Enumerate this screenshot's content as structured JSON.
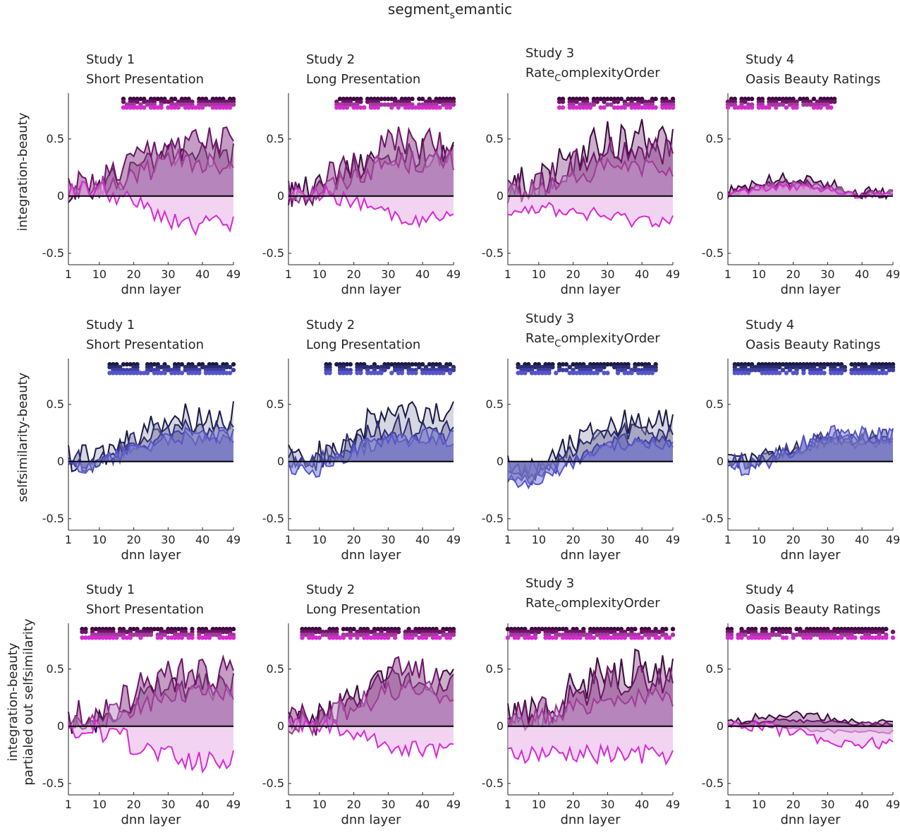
{
  "figure": {
    "title_main": "segment",
    "title_sub": "s",
    "title_rest": "emantic"
  },
  "colors": {
    "purple": [
      "#3d0a3f",
      "#6e1468",
      "#a03a98",
      "#d62ad2"
    ],
    "blue": [
      "#1a1a48",
      "#2b2b6e",
      "#3f3fa0",
      "#5556cc"
    ],
    "text": "#262626"
  },
  "x_ticks": [
    "1",
    "10",
    "20",
    "30",
    "40",
    "49"
  ],
  "y_ticks": [
    "0.5",
    "0",
    "-0.5"
  ],
  "xlabel": "dnn layer",
  "row_labels": [
    [
      "integration-beauty"
    ],
    [
      "selfsimilarity-beauty"
    ],
    [
      "integration-beauty",
      "partialed out selfsimilarity"
    ]
  ],
  "panel_titles": [
    {
      "line1": "Study 1",
      "line2": "Short Presentation",
      "sub": ""
    },
    {
      "line1": "Study 2",
      "line2": "Long Presentation",
      "sub": ""
    },
    {
      "line1": "Study 3",
      "line2": "Rate",
      "sub": "C",
      "rest": "omplexityOrder"
    },
    {
      "line1": "Study 4",
      "line2": "Oasis Beauty Ratings",
      "sub": ""
    }
  ],
  "chart_data": [
    {
      "type": "area",
      "row": 0,
      "ylabel": "integration-beauty",
      "xlim": [
        1,
        49
      ],
      "ylim": [
        -0.6,
        0.9
      ],
      "panels": [
        {
          "study": "Study 1",
          "series": [
            {
              "peak": 0.35,
              "start": 0.05,
              "shape": "rise",
              "neg": false
            },
            {
              "peak": 0.45,
              "start": 0.08,
              "shape": "rise",
              "neg": false
            },
            {
              "peak": 0.3,
              "start": 0.04,
              "shape": "rise",
              "neg": false
            },
            {
              "peak": -0.25,
              "start": 0.05,
              "shape": "fall",
              "neg": true
            }
          ],
          "sig_start": 17,
          "sig_end": 49
        },
        {
          "study": "Study 2",
          "series": [
            {
              "peak": 0.38,
              "start": 0.04,
              "shape": "rise",
              "neg": false
            },
            {
              "peak": 0.45,
              "start": 0.06,
              "shape": "rise",
              "neg": false
            },
            {
              "peak": 0.3,
              "start": 0.03,
              "shape": "rise",
              "neg": false
            },
            {
              "peak": -0.2,
              "start": 0.03,
              "shape": "fall",
              "neg": true
            }
          ],
          "sig_start": 15,
          "sig_end": 49
        },
        {
          "study": "Study 3",
          "series": [
            {
              "peak": 0.5,
              "start": 0.1,
              "shape": "rise",
              "neg": false
            },
            {
              "peak": 0.4,
              "start": 0.08,
              "shape": "rise",
              "neg": false
            },
            {
              "peak": 0.25,
              "start": 0.05,
              "shape": "rise",
              "neg": false
            },
            {
              "peak": -0.2,
              "start": -0.1,
              "shape": "fall",
              "neg": true
            }
          ],
          "sig_start": 16,
          "sig_end": 49
        },
        {
          "study": "Study 4",
          "series": [
            {
              "peak": 0.15,
              "start": 0.03,
              "shape": "hump",
              "neg": false
            },
            {
              "peak": 0.12,
              "start": 0.02,
              "shape": "hump",
              "neg": false
            },
            {
              "peak": 0.1,
              "start": 0.02,
              "shape": "hump",
              "neg": false
            },
            {
              "peak": 0.08,
              "start": 0.01,
              "shape": "hump",
              "neg": false
            }
          ],
          "sig_start": 1,
          "sig_end": 32
        }
      ]
    },
    {
      "type": "area",
      "row": 1,
      "ylabel": "selfsimilarity-beauty",
      "xlim": [
        1,
        49
      ],
      "ylim": [
        -0.6,
        0.9
      ],
      "panels": [
        {
          "study": "Study 1",
          "series": [
            {
              "peak": 0.4,
              "start": 0.02,
              "shape": "rise",
              "neg": false
            },
            {
              "peak": 0.28,
              "start": 0.01,
              "shape": "rise",
              "neg": false
            },
            {
              "peak": 0.2,
              "start": 0.0,
              "shape": "rise",
              "neg": false
            },
            {
              "peak": 0.22,
              "start": -0.05,
              "shape": "rise",
              "neg": false
            }
          ],
          "sig_start": 13,
          "sig_end": 49
        },
        {
          "study": "Study 2",
          "series": [
            {
              "peak": 0.42,
              "start": 0.02,
              "shape": "rise",
              "neg": false
            },
            {
              "peak": 0.3,
              "start": 0.01,
              "shape": "rise",
              "neg": false
            },
            {
              "peak": 0.2,
              "start": 0.0,
              "shape": "rise",
              "neg": false
            },
            {
              "peak": 0.22,
              "start": -0.08,
              "shape": "rise",
              "neg": false
            }
          ],
          "sig_start": 12,
          "sig_end": 49
        },
        {
          "study": "Study 3",
          "series": [
            {
              "peak": 0.35,
              "start": -0.05,
              "shape": "rise",
              "neg": false
            },
            {
              "peak": 0.25,
              "start": -0.1,
              "shape": "rise",
              "neg": false
            },
            {
              "peak": 0.18,
              "start": -0.15,
              "shape": "rise",
              "neg": false
            },
            {
              "peak": 0.15,
              "start": -0.2,
              "shape": "rise",
              "neg": false
            }
          ],
          "sig_start": 4,
          "sig_end": 44
        },
        {
          "study": "Study 4",
          "series": [
            {
              "peak": 0.18,
              "start": 0.01,
              "shape": "rise",
              "neg": false
            },
            {
              "peak": 0.2,
              "start": 0.01,
              "shape": "rise",
              "neg": false
            },
            {
              "peak": 0.22,
              "start": 0.0,
              "shape": "rise",
              "neg": false
            },
            {
              "peak": 0.24,
              "start": -0.05,
              "shape": "rise",
              "neg": false
            }
          ],
          "sig_start": 3,
          "sig_end": 49
        }
      ]
    },
    {
      "type": "area",
      "row": 2,
      "ylabel": "integration-beauty partialed out selfsimilarity",
      "xlim": [
        1,
        49
      ],
      "ylim": [
        -0.6,
        0.9
      ],
      "panels": [
        {
          "study": "Study 1",
          "series": [
            {
              "peak": 0.35,
              "start": 0.05,
              "shape": "rise",
              "neg": false
            },
            {
              "peak": 0.45,
              "start": 0.08,
              "shape": "rise",
              "neg": false
            },
            {
              "peak": 0.28,
              "start": 0.04,
              "shape": "rise",
              "neg": false
            },
            {
              "peak": -0.3,
              "start": -0.05,
              "shape": "fall",
              "neg": true
            }
          ],
          "sig_start": 5,
          "sig_end": 49
        },
        {
          "study": "Study 2",
          "series": [
            {
              "peak": 0.4,
              "start": 0.04,
              "shape": "rise",
              "neg": false
            },
            {
              "peak": 0.45,
              "start": 0.06,
              "shape": "rise",
              "neg": false
            },
            {
              "peak": 0.3,
              "start": 0.03,
              "shape": "rise",
              "neg": false
            },
            {
              "peak": -0.2,
              "start": 0.02,
              "shape": "fall",
              "neg": true
            }
          ],
          "sig_start": 5,
          "sig_end": 49
        },
        {
          "study": "Study 3",
          "series": [
            {
              "peak": 0.5,
              "start": 0.1,
              "shape": "rise",
              "neg": false
            },
            {
              "peak": 0.4,
              "start": 0.08,
              "shape": "rise",
              "neg": false
            },
            {
              "peak": 0.25,
              "start": 0.05,
              "shape": "rise",
              "neg": false
            },
            {
              "peak": -0.25,
              "start": -0.25,
              "shape": "fall",
              "neg": true
            }
          ],
          "sig_start": 1,
          "sig_end": 49
        },
        {
          "study": "Study 4",
          "series": [
            {
              "peak": 0.1,
              "start": 0.03,
              "shape": "hump",
              "neg": false
            },
            {
              "peak": 0.05,
              "start": 0.02,
              "shape": "hump",
              "neg": false
            },
            {
              "peak": -0.05,
              "start": 0.01,
              "shape": "fall",
              "neg": false
            },
            {
              "peak": -0.15,
              "start": 0.0,
              "shape": "fall",
              "neg": true
            }
          ],
          "sig_start": 1,
          "sig_end": 49
        }
      ]
    }
  ]
}
